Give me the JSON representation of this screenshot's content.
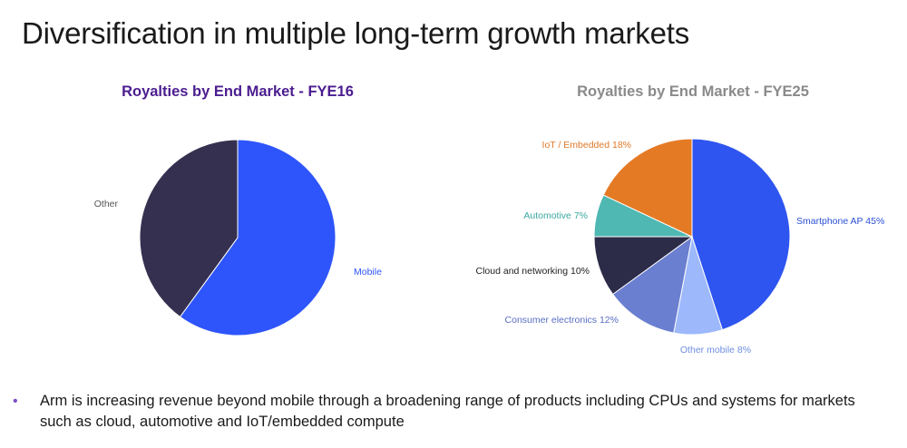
{
  "slide": {
    "title": "Diversification in multiple long-term growth markets",
    "bullet": "Arm is increasing revenue beyond mobile through a broadening range of products including CPUs and systems for markets such as cloud, automotive and IoT/embedded compute"
  },
  "chart_data": [
    {
      "type": "pie",
      "title": "Royalties by End Market - FYE16",
      "slices": [
        {
          "label": "Mobile",
          "value": 60,
          "color": "#2e55fb",
          "label_color": "#2e55fb"
        },
        {
          "label": "Other",
          "value": 40,
          "color": "#35304f",
          "label_color": "#555555"
        }
      ]
    },
    {
      "type": "pie",
      "title": "Royalties by End Market - FYE25",
      "slices": [
        {
          "label": "Smartphone AP 45%",
          "value": 45,
          "color": "#2e55f0",
          "label_color": "#2b4fd6"
        },
        {
          "label": "Other mobile 8%",
          "value": 8,
          "color": "#9db8fb",
          "label_color": "#6f8fe0"
        },
        {
          "label": "Consumer electronics 12%",
          "value": 12,
          "color": "#6a7fd0",
          "label_color": "#5a6fc4"
        },
        {
          "label": "Cloud and networking 10%",
          "value": 10,
          "color": "#2c2b48",
          "label_color": "#222222"
        },
        {
          "label": "Automotive 7%",
          "value": 7,
          "color": "#4fb8b2",
          "label_color": "#3aa9a3"
        },
        {
          "label": "IoT / Embedded 18%",
          "value": 18,
          "color": "#e57a25",
          "label_color": "#e0792a"
        }
      ]
    }
  ]
}
